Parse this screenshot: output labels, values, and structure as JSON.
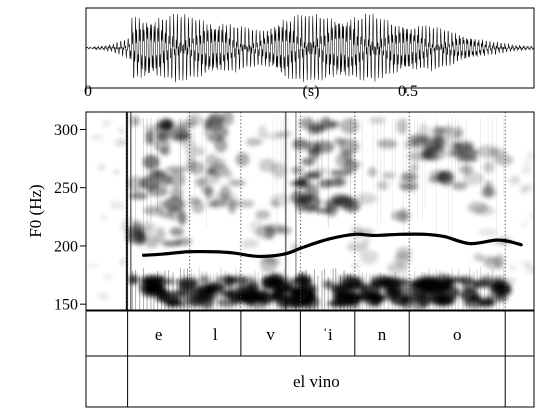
{
  "chart_data": {
    "type": "line",
    "title": "",
    "waveform": {
      "xlabel": "(s)",
      "xlim": [
        0,
        0.7
      ],
      "ticks": [
        {
          "value": 0,
          "label": "0"
        },
        {
          "value": 0.5,
          "label": "0.5"
        }
      ]
    },
    "f0": {
      "ylabel": "F0 (Hz)",
      "ylim": [
        145,
        315
      ],
      "ticks": [
        {
          "value": 150,
          "label": "150"
        },
        {
          "value": 200,
          "label": "200"
        },
        {
          "value": 250,
          "label": "250"
        },
        {
          "value": 300,
          "label": "300"
        }
      ],
      "series": [
        {
          "name": "F0 contour",
          "x": [
            0.09,
            0.12,
            0.16,
            0.2,
            0.23,
            0.27,
            0.31,
            0.34,
            0.38,
            0.42,
            0.45,
            0.49,
            0.53,
            0.56,
            0.6,
            0.64,
            0.66,
            0.68
          ],
          "values": [
            192,
            193,
            195,
            195,
            194,
            191,
            193,
            199,
            206,
            210,
            209,
            210,
            210,
            208,
            202,
            205,
            204,
            201
          ]
        }
      ]
    },
    "segment_tier": {
      "boundaries": [
        0.065,
        0.162,
        0.242,
        0.335,
        0.42,
        0.505,
        0.655
      ],
      "labels": [
        "e",
        "l",
        "v",
        "ˈi",
        "n",
        "o"
      ]
    },
    "word_tier": {
      "boundaries": [
        0.065,
        0.655
      ],
      "labels": [
        "el vino"
      ]
    }
  }
}
